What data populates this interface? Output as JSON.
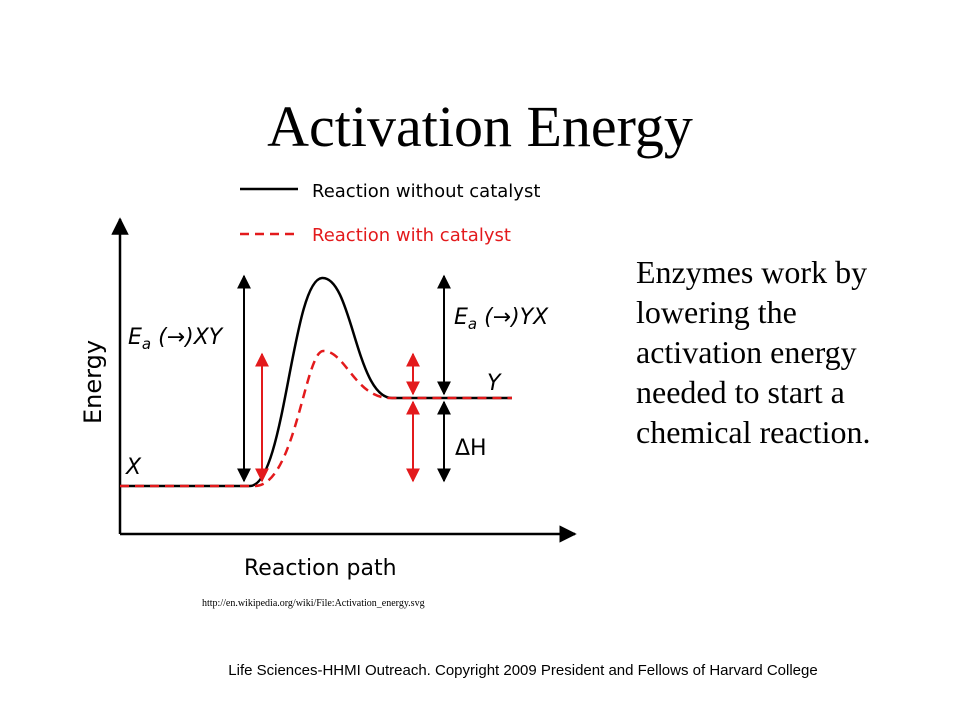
{
  "slide": {
    "title": "Activation Energy",
    "body_lines": [
      "Enzymes work by",
      "lowering the",
      "activation energy",
      "needed to start a",
      "chemical reaction."
    ],
    "source_url": "http://en.wikipedia.org/wiki/File:Activation_energy.svg",
    "copyright": "Life Sciences-HHMI Outreach. Copyright 2009 President and Fellows of Harvard College"
  },
  "diagram": {
    "legend": {
      "without_catalyst": "Reaction without catalyst",
      "with_catalyst": "Reaction with catalyst"
    },
    "y_axis_label": "Energy",
    "x_axis_label": "Reaction path",
    "reactant_label": "X",
    "product_label": "Y",
    "delta_h_label": "ΔH",
    "ea_forward_main": "E",
    "ea_forward_sub": "a",
    "ea_forward_rest": " (→)XY",
    "ea_reverse_main": "E",
    "ea_reverse_sub": "a",
    "ea_reverse_rest": " (→)YX",
    "colors": {
      "uncatalyzed": "#000000",
      "catalyzed": "#e31a1c"
    }
  }
}
